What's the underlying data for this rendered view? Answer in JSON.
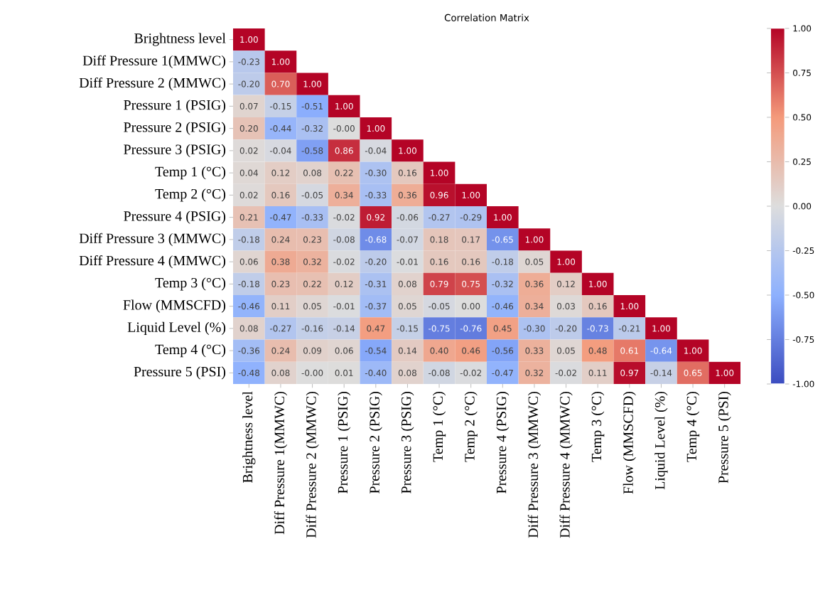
{
  "chart_data": {
    "type": "heatmap",
    "title": "Correlation Matrix",
    "categories": [
      "Brightness level",
      "Diff Pressure 1(MMWC)",
      "Diff Pressure 2 (MMWC)",
      "Pressure 1 (PSIG)",
      "Pressure 2 (PSIG)",
      "Pressure 3 (PSIG)",
      "Temp 1 (°C)",
      "Temp 2 (°C)",
      "Pressure 4 (PSIG)",
      "Diff Pressure 3 (MMWC)",
      "Diff Pressure 4 (MMWC)",
      "Temp 3 (°C)",
      "Flow (MMSCFD)",
      "Liquid Level (%)",
      "Temp 4 (°C)",
      "Pressure 5 (PSI)"
    ],
    "y_categories": [
      "Brightness level",
      "Diff Pressure 1(MMWC)",
      "Diff Pressure 2 (MMWC)",
      "Pressure 1 (PSIG)",
      "Pressure 2 (PSIG)",
      "Pressure 3 (PSIG)",
      "Temp 1 (°C)",
      "Temp 2 (°C)",
      "Pressure 4 (PSIG)",
      "Diff Pressure 3 (MMWC)",
      "Diff Pressure 4 (MMWC)",
      "Temp 3 (°C)",
      "Flow (MMSCFD)",
      "Liquid Level (%)",
      "Temp 4 (°C)",
      "Pressure 5 (PSI)"
    ],
    "cells": [
      [
        1.0,
        null,
        null,
        null,
        null,
        null,
        null,
        null,
        null,
        null,
        null,
        null,
        null,
        null,
        null,
        null
      ],
      [
        -0.23,
        1.0,
        null,
        null,
        null,
        null,
        null,
        null,
        null,
        null,
        null,
        null,
        null,
        null,
        null,
        null
      ],
      [
        -0.2,
        0.7,
        1.0,
        null,
        null,
        null,
        null,
        null,
        null,
        null,
        null,
        null,
        null,
        null,
        null,
        null
      ],
      [
        0.07,
        -0.15,
        -0.51,
        1.0,
        null,
        null,
        null,
        null,
        null,
        null,
        null,
        null,
        null,
        null,
        null,
        null
      ],
      [
        0.2,
        -0.44,
        -0.32,
        -0.0,
        1.0,
        null,
        null,
        null,
        null,
        null,
        null,
        null,
        null,
        null,
        null,
        null
      ],
      [
        0.02,
        -0.04,
        -0.58,
        0.86,
        -0.04,
        1.0,
        null,
        null,
        null,
        null,
        null,
        null,
        null,
        null,
        null,
        null
      ],
      [
        0.04,
        0.12,
        0.08,
        0.22,
        -0.3,
        0.16,
        1.0,
        null,
        null,
        null,
        null,
        null,
        null,
        null,
        null,
        null
      ],
      [
        0.02,
        0.16,
        -0.05,
        0.34,
        -0.33,
        0.36,
        0.96,
        1.0,
        null,
        null,
        null,
        null,
        null,
        null,
        null,
        null
      ],
      [
        0.21,
        -0.47,
        -0.33,
        -0.02,
        0.92,
        -0.06,
        -0.27,
        -0.29,
        1.0,
        null,
        null,
        null,
        null,
        null,
        null,
        null
      ],
      [
        -0.18,
        0.24,
        0.23,
        -0.08,
        -0.68,
        -0.07,
        0.18,
        0.17,
        -0.65,
        1.0,
        null,
        null,
        null,
        null,
        null,
        null
      ],
      [
        0.06,
        0.38,
        0.32,
        -0.02,
        -0.2,
        -0.01,
        0.16,
        0.16,
        -0.18,
        0.05,
        1.0,
        null,
        null,
        null,
        null,
        null
      ],
      [
        -0.18,
        0.23,
        0.22,
        0.12,
        -0.31,
        0.08,
        0.79,
        0.75,
        -0.32,
        0.36,
        0.12,
        1.0,
        null,
        null,
        null,
        null
      ],
      [
        -0.46,
        0.11,
        0.05,
        -0.01,
        -0.37,
        0.05,
        -0.05,
        0.0,
        -0.46,
        0.34,
        0.03,
        0.16,
        1.0,
        null,
        null,
        null
      ],
      [
        0.08,
        -0.27,
        -0.16,
        -0.14,
        0.47,
        -0.15,
        -0.75,
        -0.76,
        0.45,
        -0.3,
        -0.2,
        -0.73,
        -0.21,
        1.0,
        null,
        null
      ],
      [
        -0.36,
        0.24,
        0.09,
        0.06,
        -0.54,
        0.14,
        0.4,
        0.46,
        -0.56,
        0.33,
        0.05,
        0.48,
        0.61,
        -0.64,
        1.0,
        null
      ],
      [
        -0.48,
        0.08,
        -0.0,
        0.01,
        -0.4,
        0.08,
        -0.08,
        -0.02,
        -0.47,
        0.32,
        -0.02,
        0.11,
        0.97,
        -0.14,
        0.65,
        1.0
      ]
    ],
    "cell_labels": [
      [
        "1.00",
        null,
        null,
        null,
        null,
        null,
        null,
        null,
        null,
        null,
        null,
        null,
        null,
        null,
        null,
        null
      ],
      [
        "-0.23",
        "1.00",
        null,
        null,
        null,
        null,
        null,
        null,
        null,
        null,
        null,
        null,
        null,
        null,
        null,
        null
      ],
      [
        "-0.20",
        "0.70",
        "1.00",
        null,
        null,
        null,
        null,
        null,
        null,
        null,
        null,
        null,
        null,
        null,
        null,
        null
      ],
      [
        "0.07",
        "-0.15",
        "-0.51",
        "1.00",
        null,
        null,
        null,
        null,
        null,
        null,
        null,
        null,
        null,
        null,
        null,
        null
      ],
      [
        "0.20",
        "-0.44",
        "-0.32",
        "-0.00",
        "1.00",
        null,
        null,
        null,
        null,
        null,
        null,
        null,
        null,
        null,
        null,
        null
      ],
      [
        "0.02",
        "-0.04",
        "-0.58",
        "0.86",
        "-0.04",
        "1.00",
        null,
        null,
        null,
        null,
        null,
        null,
        null,
        null,
        null,
        null
      ],
      [
        "0.04",
        "0.12",
        "0.08",
        "0.22",
        "-0.30",
        "0.16",
        "1.00",
        null,
        null,
        null,
        null,
        null,
        null,
        null,
        null,
        null
      ],
      [
        "0.02",
        "0.16",
        "-0.05",
        "0.34",
        "-0.33",
        "0.36",
        "0.96",
        "1.00",
        null,
        null,
        null,
        null,
        null,
        null,
        null,
        null
      ],
      [
        "0.21",
        "-0.47",
        "-0.33",
        "-0.02",
        "0.92",
        "-0.06",
        "-0.27",
        "-0.29",
        "1.00",
        null,
        null,
        null,
        null,
        null,
        null,
        null
      ],
      [
        "-0.18",
        "0.24",
        "0.23",
        "-0.08",
        "-0.68",
        "-0.07",
        "0.18",
        "0.17",
        "-0.65",
        "1.00",
        null,
        null,
        null,
        null,
        null,
        null
      ],
      [
        "0.06",
        "0.38",
        "0.32",
        "-0.02",
        "-0.20",
        "-0.01",
        "0.16",
        "0.16",
        "-0.18",
        "0.05",
        "1.00",
        null,
        null,
        null,
        null,
        null
      ],
      [
        "-0.18",
        "0.23",
        "0.22",
        "0.12",
        "-0.31",
        "0.08",
        "0.79",
        "0.75",
        "-0.32",
        "0.36",
        "0.12",
        "1.00",
        null,
        null,
        null,
        null
      ],
      [
        "-0.46",
        "0.11",
        "0.05",
        "-0.01",
        "-0.37",
        "0.05",
        "-0.05",
        "0.00",
        "-0.46",
        "0.34",
        "0.03",
        "0.16",
        "1.00",
        null,
        null,
        null
      ],
      [
        "0.08",
        "-0.27",
        "-0.16",
        "-0.14",
        "0.47",
        "-0.15",
        "-0.75",
        "-0.76",
        "0.45",
        "-0.30",
        "-0.20",
        "-0.73",
        "-0.21",
        "1.00",
        null,
        null
      ],
      [
        "-0.36",
        "0.24",
        "0.09",
        "0.06",
        "-0.54",
        "0.14",
        "0.40",
        "0.46",
        "-0.56",
        "0.33",
        "0.05",
        "0.48",
        "0.61",
        "-0.64",
        "1.00",
        null
      ],
      [
        "-0.48",
        "0.08",
        "-0.00",
        "0.01",
        "-0.40",
        "0.08",
        "-0.08",
        "-0.02",
        "-0.47",
        "0.32",
        "-0.02",
        "0.11",
        "0.97",
        "-0.14",
        "0.65",
        "1.00"
      ]
    ],
    "clim": [
      -1.0,
      1.0
    ],
    "cticks": [
      {
        "value": -1.0,
        "label": "-1.00"
      },
      {
        "value": -0.75,
        "label": "-0.75"
      },
      {
        "value": -0.5,
        "label": "-0.50"
      },
      {
        "value": -0.25,
        "label": "-0.25"
      },
      {
        "value": 0.0,
        "label": "0.00"
      },
      {
        "value": 0.25,
        "label": "0.25"
      },
      {
        "value": 0.5,
        "label": "0.50"
      },
      {
        "value": 0.75,
        "label": "0.75"
      },
      {
        "value": 1.0,
        "label": "1.00"
      }
    ]
  }
}
